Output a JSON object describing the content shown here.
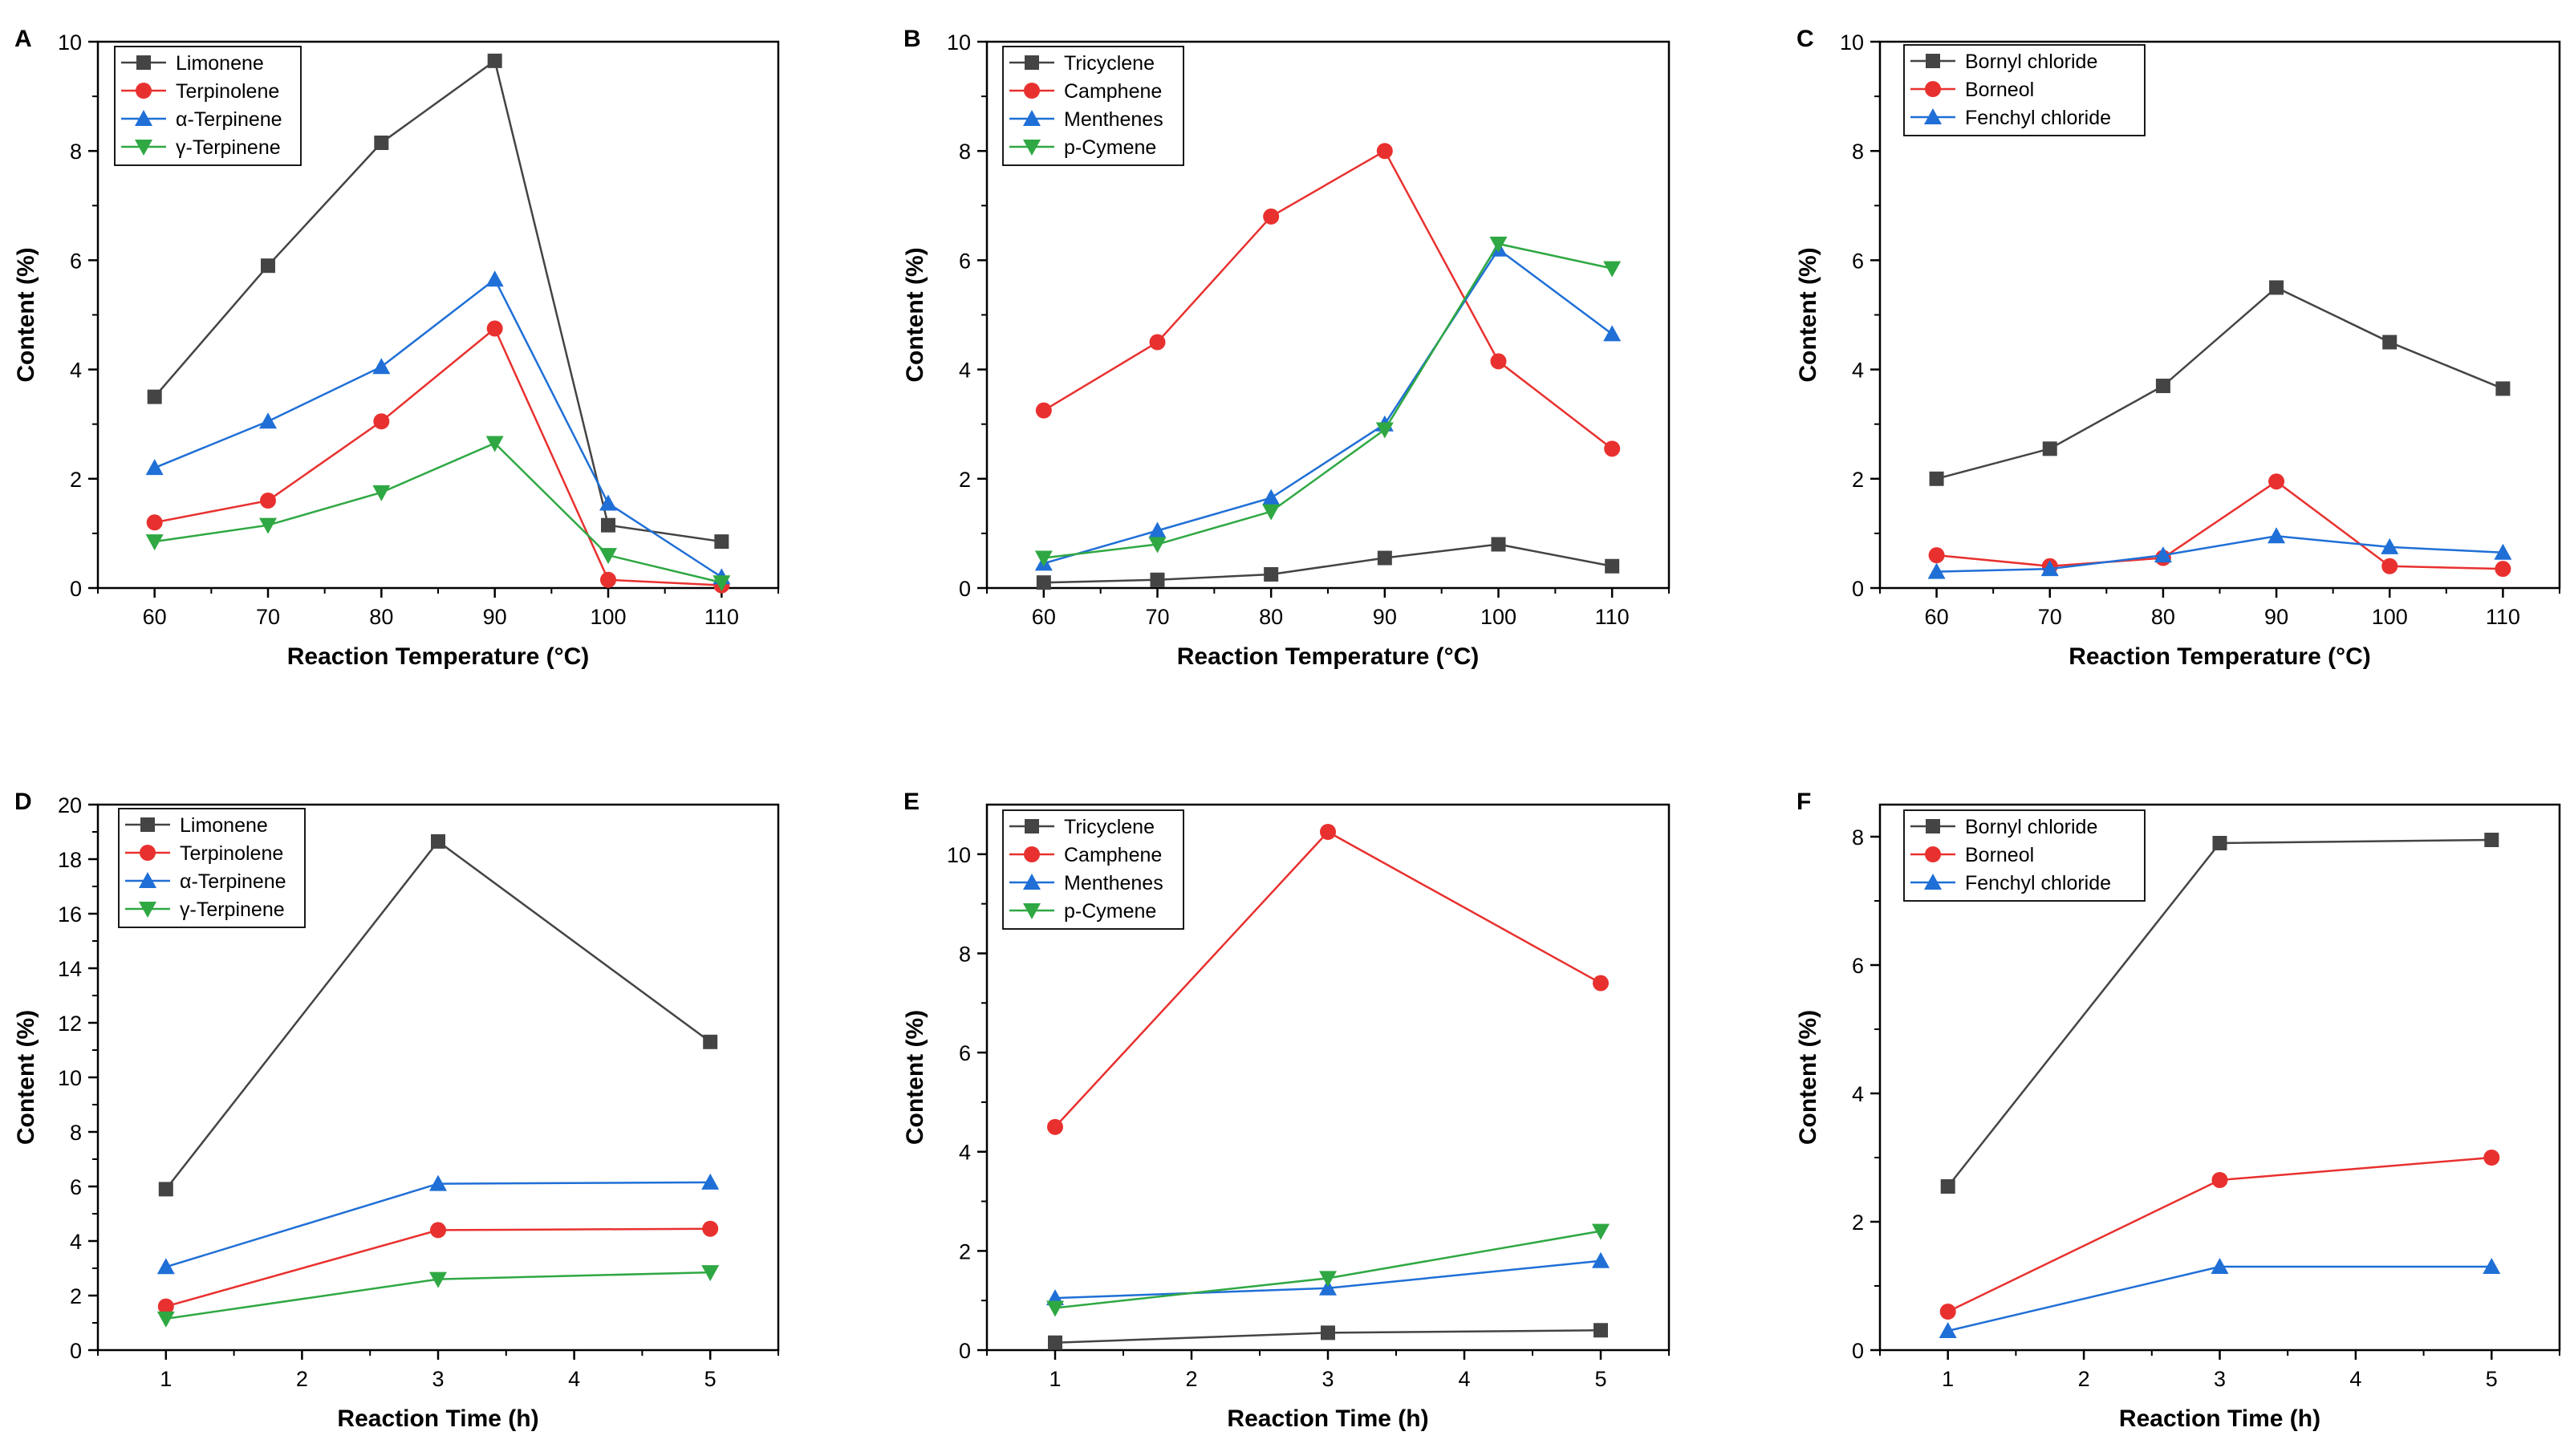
{
  "chart_data": [
    {
      "panel": "A",
      "type": "line",
      "title": "",
      "xlabel": "Reaction Temperature (°C)",
      "ylabel": "Content (%)",
      "x": [
        60,
        70,
        80,
        90,
        100,
        110
      ],
      "xticks": [
        60,
        70,
        80,
        90,
        100,
        110
      ],
      "xlim": [
        55,
        115
      ],
      "ylim": [
        0,
        10
      ],
      "yticks": [
        0,
        2,
        4,
        6,
        8,
        10
      ],
      "legend_position": "top-left",
      "series": [
        {
          "name": "Limonene",
          "color": "#444444",
          "marker": "square",
          "values": [
            3.5,
            5.9,
            8.15,
            9.65,
            1.15,
            0.85
          ]
        },
        {
          "name": "Terpinolene",
          "color": "#e8312f",
          "marker": "circle",
          "values": [
            1.2,
            1.6,
            3.05,
            4.75,
            0.15,
            0.05
          ]
        },
        {
          "name": "α-Terpinene",
          "color": "#1f6fd6",
          "marker": "triangle-up",
          "values": [
            2.2,
            3.05,
            4.05,
            5.65,
            1.55,
            0.2
          ]
        },
        {
          "name": "γ-Terpinene",
          "color": "#2fa843",
          "marker": "triangle-down",
          "values": [
            0.85,
            1.15,
            1.75,
            2.65,
            0.6,
            0.1
          ]
        }
      ]
    },
    {
      "panel": "B",
      "type": "line",
      "title": "",
      "xlabel": "Reaction Temperature (°C)",
      "ylabel": "Content (%)",
      "x": [
        60,
        70,
        80,
        90,
        100,
        110
      ],
      "xticks": [
        60,
        70,
        80,
        90,
        100,
        110
      ],
      "xlim": [
        55,
        115
      ],
      "ylim": [
        0,
        10
      ],
      "yticks": [
        0,
        2,
        4,
        6,
        8,
        10
      ],
      "legend_position": "top-left",
      "series": [
        {
          "name": "Tricyclene",
          "color": "#444444",
          "marker": "square",
          "values": [
            0.1,
            0.15,
            0.25,
            0.55,
            0.8,
            0.4
          ]
        },
        {
          "name": "Camphene",
          "color": "#e8312f",
          "marker": "circle",
          "values": [
            3.25,
            4.5,
            6.8,
            8.0,
            4.15,
            2.55
          ]
        },
        {
          "name": "Menthenes",
          "color": "#1f6fd6",
          "marker": "triangle-up",
          "values": [
            0.45,
            1.05,
            1.65,
            3.0,
            6.2,
            4.65
          ]
        },
        {
          "name": "p-Cymene",
          "color": "#2fa843",
          "marker": "triangle-down",
          "values": [
            0.55,
            0.8,
            1.4,
            2.9,
            6.3,
            5.85
          ]
        }
      ]
    },
    {
      "panel": "C",
      "type": "line",
      "title": "",
      "xlabel": "Reaction Temperature (°C)",
      "ylabel": "Content (%)",
      "x": [
        60,
        70,
        80,
        90,
        100,
        110
      ],
      "xticks": [
        60,
        70,
        80,
        90,
        100,
        110
      ],
      "xlim": [
        55,
        115
      ],
      "ylim": [
        0,
        10
      ],
      "yticks": [
        0,
        2,
        4,
        6,
        8,
        10
      ],
      "legend_position": "top-left",
      "series": [
        {
          "name": "Bornyl chloride",
          "color": "#444444",
          "marker": "square",
          "values": [
            2.0,
            2.55,
            3.7,
            5.5,
            4.5,
            3.65
          ]
        },
        {
          "name": "Borneol",
          "color": "#e8312f",
          "marker": "circle",
          "values": [
            0.6,
            0.4,
            0.55,
            1.95,
            0.4,
            0.35
          ]
        },
        {
          "name": "Fenchyl chloride",
          "color": "#1f6fd6",
          "marker": "triangle-up",
          "values": [
            0.3,
            0.35,
            0.6,
            0.95,
            0.75,
            0.65
          ]
        }
      ]
    },
    {
      "panel": "D",
      "type": "line",
      "title": "",
      "xlabel": "Reaction Time (h)",
      "ylabel": "Content (%)",
      "x": [
        1,
        3,
        5
      ],
      "xticks": [
        1,
        2,
        3,
        4,
        5
      ],
      "xlim": [
        0.5,
        5.5
      ],
      "ylim": [
        0,
        20
      ],
      "yticks": [
        0,
        2,
        4,
        6,
        8,
        10,
        12,
        14,
        16,
        18,
        20
      ],
      "legend_position": "top-left",
      "series": [
        {
          "name": "Limonene",
          "color": "#444444",
          "marker": "square",
          "values": [
            5.9,
            18.65,
            11.3
          ]
        },
        {
          "name": "Terpinolene",
          "color": "#e8312f",
          "marker": "circle",
          "values": [
            1.6,
            4.4,
            4.45
          ]
        },
        {
          "name": "α-Terpinene",
          "color": "#1f6fd6",
          "marker": "triangle-up",
          "values": [
            3.05,
            6.1,
            6.15
          ]
        },
        {
          "name": "γ-Terpinene",
          "color": "#2fa843",
          "marker": "triangle-down",
          "values": [
            1.15,
            2.6,
            2.85
          ]
        }
      ]
    },
    {
      "panel": "E",
      "type": "line",
      "title": "",
      "xlabel": "Reaction Time (h)",
      "ylabel": "Content (%)",
      "x": [
        1,
        3,
        5
      ],
      "xticks": [
        1,
        2,
        3,
        4,
        5
      ],
      "xlim": [
        0.5,
        5.5
      ],
      "ylim": [
        0,
        11
      ],
      "yticks": [
        0,
        2,
        4,
        6,
        8,
        10
      ],
      "legend_position": "top-left",
      "series": [
        {
          "name": "Tricyclene",
          "color": "#444444",
          "marker": "square",
          "values": [
            0.15,
            0.35,
            0.4
          ]
        },
        {
          "name": "Camphene",
          "color": "#e8312f",
          "marker": "circle",
          "values": [
            4.5,
            10.45,
            7.4
          ]
        },
        {
          "name": "Menthenes",
          "color": "#1f6fd6",
          "marker": "triangle-up",
          "values": [
            1.05,
            1.25,
            1.8
          ]
        },
        {
          "name": "p-Cymene",
          "color": "#2fa843",
          "marker": "triangle-down",
          "values": [
            0.85,
            1.45,
            2.4
          ]
        }
      ]
    },
    {
      "panel": "F",
      "type": "line",
      "title": "",
      "xlabel": "Reaction Time (h)",
      "ylabel": "Content (%)",
      "x": [
        1,
        3,
        5
      ],
      "xticks": [
        1,
        2,
        3,
        4,
        5
      ],
      "xlim": [
        0.5,
        5.5
      ],
      "ylim": [
        0,
        8.5
      ],
      "yticks": [
        0,
        2,
        4,
        6,
        8
      ],
      "legend_position": "top-left",
      "series": [
        {
          "name": "Bornyl chloride",
          "color": "#444444",
          "marker": "square",
          "values": [
            2.55,
            7.9,
            7.95
          ]
        },
        {
          "name": "Borneol",
          "color": "#e8312f",
          "marker": "circle",
          "values": [
            0.6,
            2.65,
            3.0
          ]
        },
        {
          "name": "Fenchyl chloride",
          "color": "#1f6fd6",
          "marker": "triangle-up",
          "values": [
            0.3,
            1.3,
            1.3
          ]
        }
      ]
    }
  ]
}
